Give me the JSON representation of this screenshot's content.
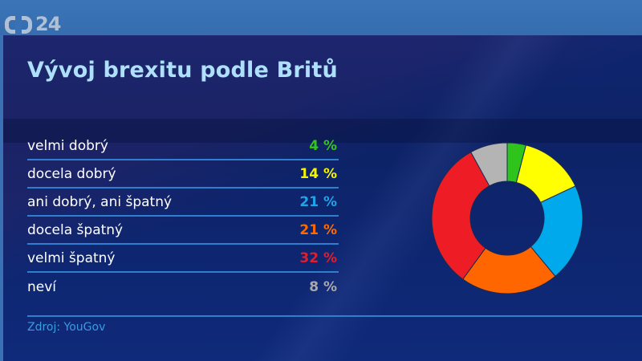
{
  "channel": {
    "logo_text": "24",
    "name": "ČT24"
  },
  "header": {
    "title": "Vývoj brexitu podle Britů"
  },
  "rows": [
    {
      "label": "velmi dobrý",
      "value": "4 %",
      "color": "#35c41c"
    },
    {
      "label": "docela dobrý",
      "value": "14 %",
      "color": "#f4f400"
    },
    {
      "label": "ani dobrý, ani špatný",
      "value": "21 %",
      "color": "#1ea4e8"
    },
    {
      "label": "docela špatný",
      "value": "21 %",
      "color": "#ff6a00"
    },
    {
      "label": "velmi špatný",
      "value": "32 %",
      "color": "#e51c2a"
    },
    {
      "label": "neví",
      "value": "8 %",
      "color": "#a9a9a9"
    }
  ],
  "footer": {
    "source": "Zdroj: YouGov"
  },
  "chart_data": {
    "type": "pie",
    "variant": "donut",
    "title": "Vývoj brexitu podle Britů",
    "categories": [
      "velmi dobrý",
      "docela dobrý",
      "ani dobrý, ani špatný",
      "docela špatný",
      "velmi špatný",
      "neví"
    ],
    "values": [
      4,
      14,
      21,
      21,
      32,
      8
    ],
    "unit": "%",
    "colors": [
      "#2ec41c",
      "#ffff00",
      "#00a8ec",
      "#ff6600",
      "#ee1c25",
      "#b4b4b4"
    ],
    "start_angle_deg": 0,
    "direction": "clockwise",
    "legend_position": "left (table)",
    "source": "Zdroj: YouGov"
  }
}
